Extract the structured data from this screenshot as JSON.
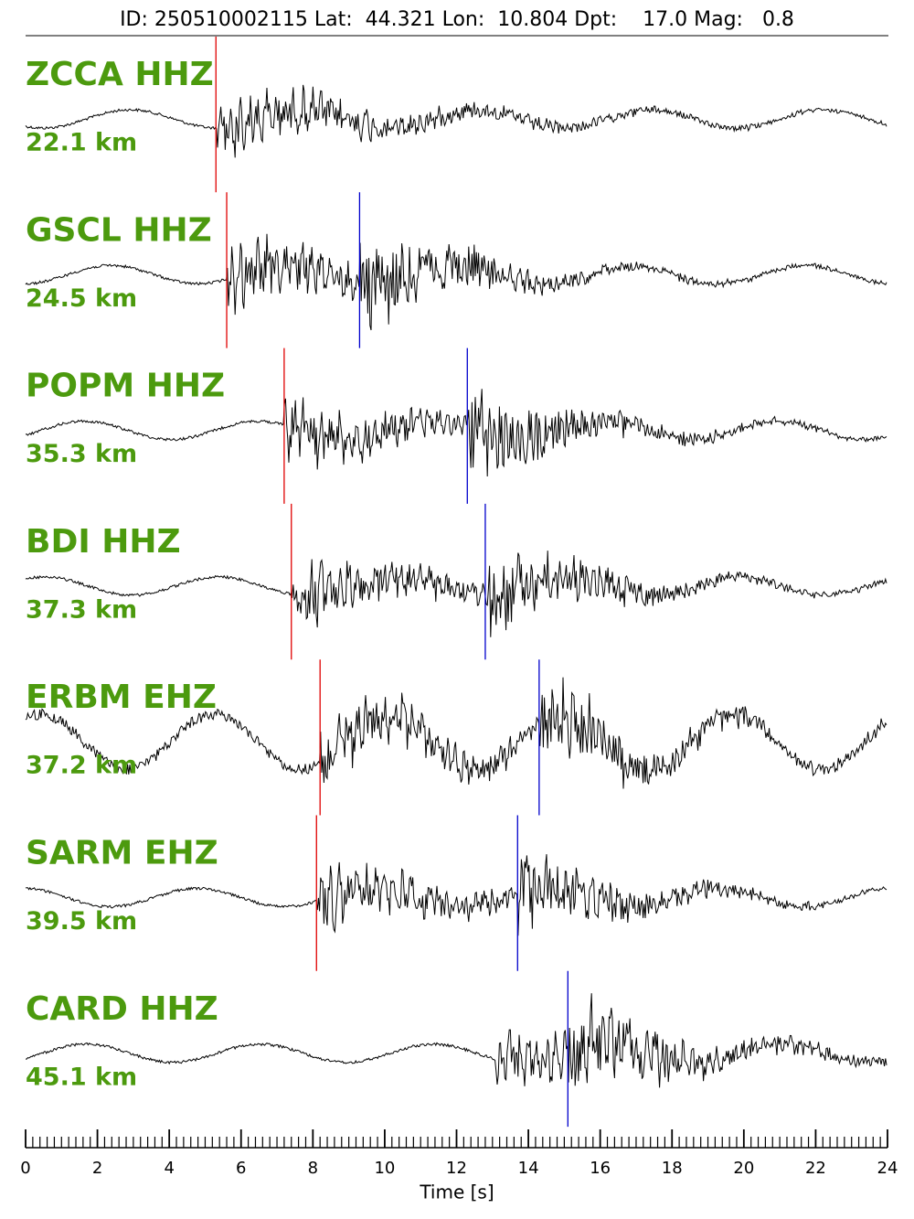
{
  "chart_data": {
    "type": "seismogram",
    "title": "ID: 250510002115 Lat:  44.321 Lon:  10.804 Dpt:    17.0 Mag:   0.8",
    "x_label": "Time [s]",
    "xlim": [
      0,
      24
    ],
    "xticks": [
      0,
      2,
      4,
      6,
      8,
      10,
      12,
      14,
      16,
      18,
      20,
      22,
      24
    ],
    "p_color": "#e00000",
    "s_color": "#0000cc",
    "trace_color": "#000000",
    "traces": [
      {
        "name": "ZCCA HHZ",
        "distance": "22.1 km",
        "p_pick": 5.3,
        "s_pick": null
      },
      {
        "name": "GSCL HHZ",
        "distance": "24.5 km",
        "p_pick": 5.6,
        "s_pick": 9.3
      },
      {
        "name": "POPM HHZ",
        "distance": "35.3 km",
        "p_pick": 7.2,
        "s_pick": 12.3
      },
      {
        "name": "BDI HHZ",
        "distance": "37.3 km",
        "p_pick": 7.4,
        "s_pick": 12.8
      },
      {
        "name": "ERBM EHZ",
        "distance": "37.2 km",
        "p_pick": 8.2,
        "s_pick": 14.3
      },
      {
        "name": "SARM EHZ",
        "distance": "39.5 km",
        "p_pick": 8.1,
        "s_pick": 13.7
      },
      {
        "name": "CARD HHZ",
        "distance": "45.1 km",
        "p_pick": null,
        "s_pick": 15.1
      }
    ]
  }
}
